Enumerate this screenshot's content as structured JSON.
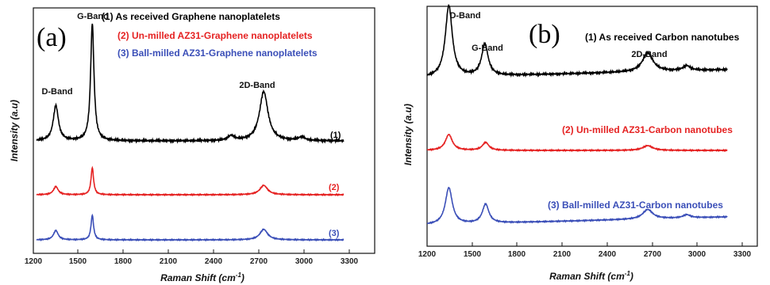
{
  "chart_data": [
    {
      "type": "line",
      "panel_label": "(a)",
      "xlabel_main": "Raman Shift (cm",
      "xlabel_sup": "-1",
      "xlabel_tail": ")",
      "ylabel": "Intensity (a.u)",
      "xlim": [
        1200,
        3400
      ],
      "xticks": [
        "1200",
        "1500",
        "1800",
        "2100",
        "2400",
        "2700",
        "3000",
        "3300"
      ],
      "x_range": [
        1220,
        3200
      ],
      "series": [
        {
          "name": "(1) As received Graphene nanoplatelets",
          "curve_label": "(1)",
          "color": "#000000",
          "baseline": 0.3,
          "noise": 0.01,
          "slope": 0.0,
          "peaks": [
            {
              "x": 1345,
              "h": 0.3,
              "w": 20
            },
            {
              "x": 1580,
              "h": 1.0,
              "w": 13
            },
            {
              "x": 2475,
              "h": 0.04,
              "w": 25
            },
            {
              "x": 2685,
              "h": 0.42,
              "w": 33
            },
            {
              "x": 2930,
              "h": 0.03,
              "w": 25
            }
          ]
        },
        {
          "name": "(2) Un-milled AZ31-Graphene nanoplatelets",
          "curve_label": "(2)",
          "color": "#e52222",
          "baseline": 0.0,
          "noise": 0.004,
          "slope": 0.0,
          "peaks": [
            {
              "x": 1345,
              "h": 0.07,
              "w": 18
            },
            {
              "x": 1580,
              "h": 0.23,
              "w": 10
            },
            {
              "x": 2685,
              "h": 0.08,
              "w": 30
            }
          ]
        },
        {
          "name": "(3) Ball-milled AZ31-Graphene nanoplatelets",
          "curve_label": "(3)",
          "color": "#3b4fb8",
          "baseline": -0.3,
          "noise": 0.004,
          "slope": 0.0,
          "peaks": [
            {
              "x": 1345,
              "h": 0.08,
              "w": 18
            },
            {
              "x": 1580,
              "h": 0.21,
              "w": 10
            },
            {
              "x": 2685,
              "h": 0.09,
              "w": 30
            }
          ]
        }
      ],
      "bands": [
        {
          "label": "G-Band",
          "x": 1585
        },
        {
          "label": "D-Band",
          "x": 1340
        },
        {
          "label": "2D-Band",
          "x": 2685
        }
      ]
    },
    {
      "type": "line",
      "panel_label": "(b)",
      "xlabel_main": "Raman Shift (cm",
      "xlabel_sup": "-1",
      "xlabel_tail": ")",
      "ylabel": "Intensity (a.u)",
      "xlim": [
        1200,
        3400
      ],
      "xticks": [
        "1200",
        "1500",
        "1800",
        "2100",
        "2400",
        "2700",
        "3000",
        "3300"
      ],
      "x_range": [
        1200,
        3200
      ],
      "series": [
        {
          "name": "(1) As received Carbon nanotubes",
          "color": "#000000",
          "baseline": 0.3,
          "noise": 0.006,
          "slope": 0.05,
          "peaks": [
            {
              "x": 1345,
              "h": 0.45,
              "w": 28
            },
            {
              "x": 1585,
              "h": 0.2,
              "w": 26
            },
            {
              "x": 2670,
              "h": 0.12,
              "w": 42
            },
            {
              "x": 2930,
              "h": 0.03,
              "w": 30
            }
          ]
        },
        {
          "name": "(2) Un-milled AZ31-Carbon nanotubes",
          "color": "#e52222",
          "baseline": 0.0,
          "noise": 0.003,
          "slope": 0.0,
          "peaks": [
            {
              "x": 1345,
              "h": 0.1,
              "w": 28
            },
            {
              "x": 1590,
              "h": 0.05,
              "w": 26
            },
            {
              "x": 2670,
              "h": 0.03,
              "w": 40
            }
          ]
        },
        {
          "name": "(3) Ball-milled AZ31-Carbon nanotubes",
          "color": "#3b4fb8",
          "baseline": -0.28,
          "noise": 0.003,
          "slope": 0.05,
          "peaks": [
            {
              "x": 1345,
              "h": 0.23,
              "w": 28
            },
            {
              "x": 1590,
              "h": 0.12,
              "w": 26
            },
            {
              "x": 2670,
              "h": 0.06,
              "w": 40
            },
            {
              "x": 2930,
              "h": 0.02,
              "w": 30
            }
          ]
        }
      ],
      "bands": [
        {
          "label": "D-Band",
          "x": 1345
        },
        {
          "label": "G-Band",
          "x": 1590
        },
        {
          "label": "2D-Band",
          "x": 2670
        }
      ]
    }
  ]
}
